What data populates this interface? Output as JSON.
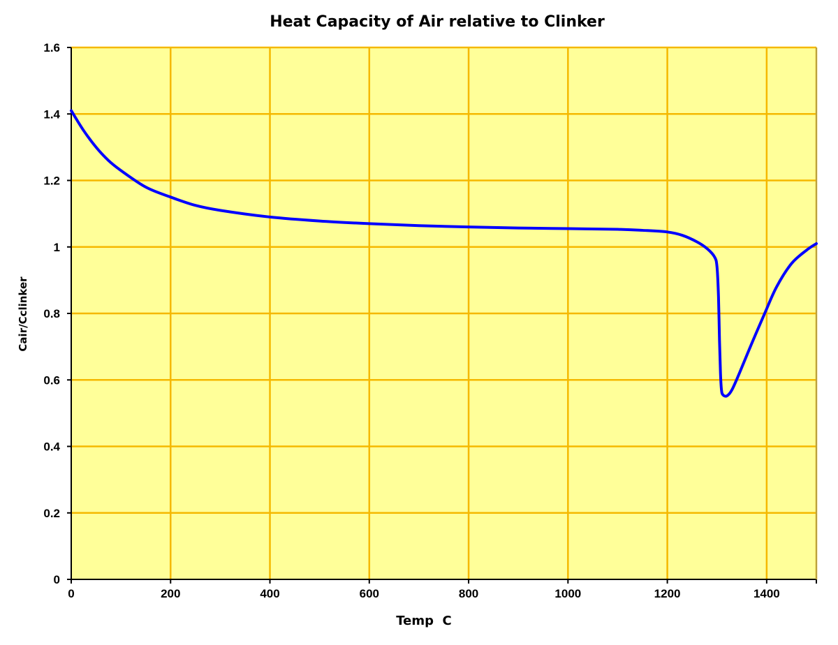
{
  "chart_data": {
    "type": "line",
    "title": "Heat Capacity of Air relative to Clinker",
    "xlabel": "Temp  C",
    "ylabel": "Cair/Cclinker",
    "xlim": [
      0,
      1500
    ],
    "ylim": [
      0,
      1.6
    ],
    "xticks": [
      "0",
      "200",
      "400",
      "600",
      "800",
      "1000",
      "1200",
      "1400"
    ],
    "yticks": [
      "0",
      "0.2",
      "0.4",
      "0.6",
      "0.8",
      "1",
      "1.2",
      "1.4",
      "1.6"
    ],
    "grid": true,
    "legend": "none",
    "colors": {
      "plot_background": "#FFFF99",
      "grid": "#F5B800",
      "line": "#0000FF"
    },
    "series": [
      {
        "x": [
          0,
          25,
          50,
          75,
          100,
          150,
          200,
          250,
          300,
          400,
          500,
          600,
          700,
          800,
          900,
          1000,
          1100,
          1150,
          1200,
          1230,
          1260,
          1280,
          1295,
          1300,
          1303,
          1305,
          1307,
          1309,
          1312,
          1320,
          1330,
          1345,
          1370,
          1396,
          1420,
          1450,
          1480,
          1500
        ],
        "y": [
          1.41,
          1.35,
          1.3,
          1.26,
          1.23,
          1.18,
          1.15,
          1.125,
          1.11,
          1.09,
          1.078,
          1.07,
          1.064,
          1.06,
          1.057,
          1.055,
          1.053,
          1.05,
          1.045,
          1.035,
          1.015,
          0.995,
          0.97,
          0.94,
          0.85,
          0.72,
          0.62,
          0.57,
          0.555,
          0.552,
          0.57,
          0.62,
          0.71,
          0.8,
          0.88,
          0.95,
          0.99,
          1.01
        ]
      }
    ]
  }
}
